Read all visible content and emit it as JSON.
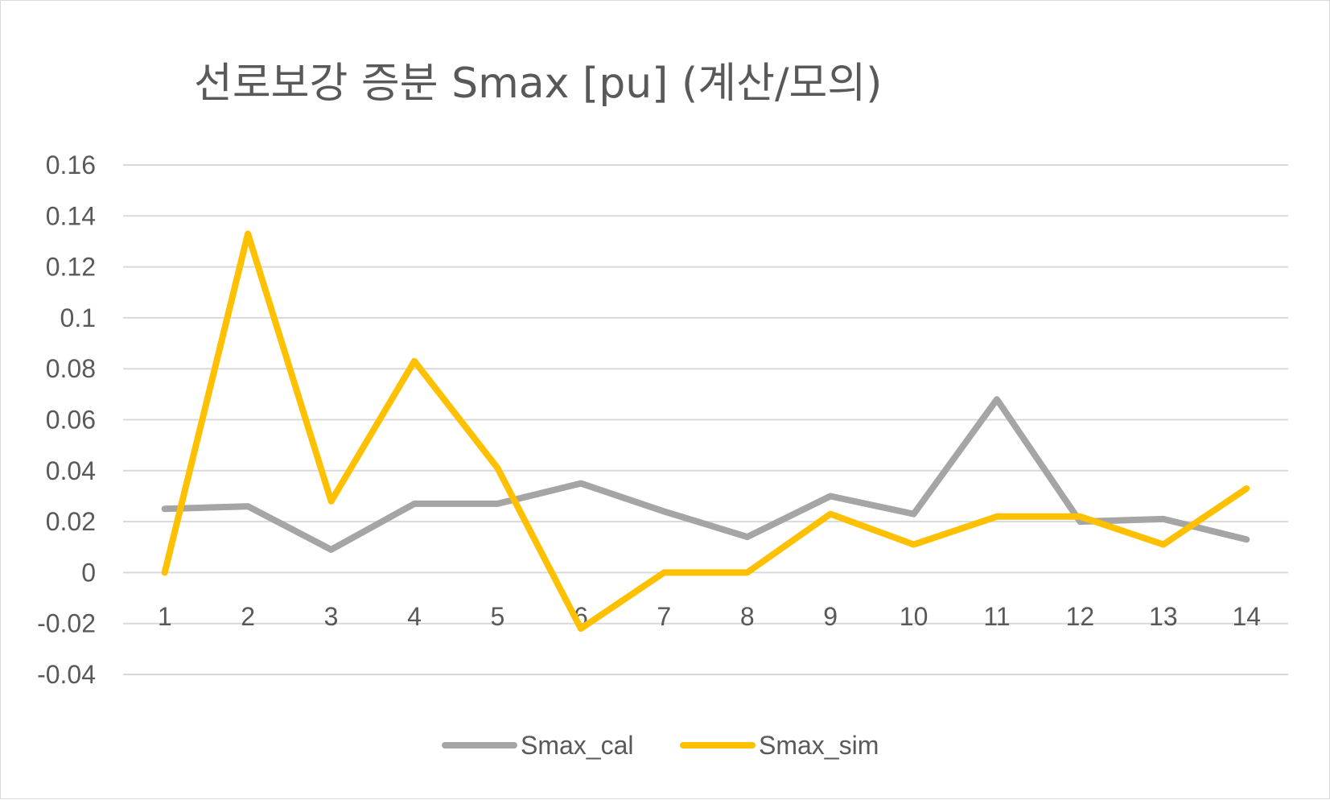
{
  "chart_data": {
    "type": "line",
    "title": "선로보강 증분 Smax [pu] (계산/모의)",
    "xlabel": "",
    "ylabel": "",
    "categories": [
      "1",
      "2",
      "3",
      "4",
      "5",
      "6",
      "7",
      "8",
      "9",
      "10",
      "11",
      "12",
      "13",
      "14"
    ],
    "ylim": [
      -0.04,
      0.16
    ],
    "yticks": [
      0.16,
      0.14,
      0.12,
      0.1,
      0.08,
      0.06,
      0.04,
      0.02,
      0,
      -0.02,
      -0.04
    ],
    "ytick_labels": [
      "0.16",
      "0.14",
      "0.12",
      "0.1",
      "0.08",
      "0.06",
      "0.04",
      "0.02",
      "0",
      "-0.02",
      "-0.04"
    ],
    "grid": true,
    "legend_position": "bottom",
    "series": [
      {
        "name": "Smax_cal",
        "color": "#a5a5a5",
        "values": [
          0.025,
          0.026,
          0.009,
          0.027,
          0.027,
          0.035,
          0.024,
          0.014,
          0.03,
          0.023,
          0.068,
          0.02,
          0.021,
          0.013
        ]
      },
      {
        "name": "Smax_sim",
        "color": "#ffc000",
        "values": [
          0.0,
          0.133,
          0.028,
          0.083,
          0.041,
          -0.022,
          0.0,
          0.0,
          0.023,
          0.011,
          0.022,
          0.022,
          0.011,
          0.033
        ]
      }
    ]
  }
}
